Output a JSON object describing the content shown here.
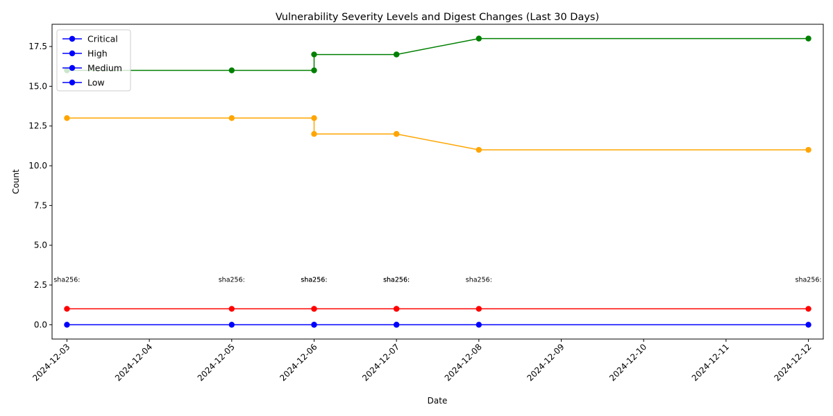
{
  "chart_data": {
    "type": "line",
    "title": "Vulnerability Severity Levels and Digest Changes (Last 30 Days)",
    "xlabel": "Date",
    "ylabel": "Count",
    "ylim": [
      -0.9,
      18.9
    ],
    "xlim": [
      "2024-12-02 19:40",
      "2024-12-12 04:20"
    ],
    "y_ticks": [
      0,
      2.5,
      5,
      7.5,
      10,
      12.5,
      15,
      17.5
    ],
    "y_tick_labels": [
      "0.0",
      "2.5",
      "5.0",
      "7.5",
      "10.0",
      "12.5",
      "15.0",
      "17.5"
    ],
    "x_ticks": [
      "2024-12-03",
      "2024-12-04",
      "2024-12-05",
      "2024-12-06",
      "2024-12-07",
      "2024-12-08",
      "2024-12-09",
      "2024-12-10",
      "2024-12-11",
      "2024-12-12"
    ],
    "grid": false,
    "legend": {
      "placement": "top-left",
      "entries": [
        "Critical",
        "High",
        "Medium",
        "Low"
      ],
      "marker_color": "#0000ff"
    },
    "x": [
      "2024-12-03",
      "2024-12-05",
      "2024-12-06",
      "2024-12-06",
      "2024-12-07",
      "2024-12-07",
      "2024-12-08",
      "2024-12-12"
    ],
    "series": [
      {
        "color": "#0000ff",
        "values": [
          0,
          0,
          0,
          0,
          0,
          0,
          0,
          0
        ]
      },
      {
        "color": "#ff0000",
        "values": [
          1,
          1,
          1,
          1,
          1,
          1,
          1,
          1
        ]
      },
      {
        "color": "#ffa500",
        "values": [
          13,
          13,
          13,
          12,
          12,
          12,
          11,
          11
        ]
      },
      {
        "color": "#008000",
        "values": [
          16,
          16,
          16,
          17,
          17,
          17,
          18,
          18
        ]
      }
    ],
    "annotations": [
      {
        "x": "2024-12-03",
        "y": 2.7,
        "text": "sha256:"
      },
      {
        "x": "2024-12-05",
        "y": 2.7,
        "text": "sha256:"
      },
      {
        "x": "2024-12-06",
        "y": 2.7,
        "text": "sha256:"
      },
      {
        "x": "2024-12-06",
        "y": 2.7,
        "text": "sha256:"
      },
      {
        "x": "2024-12-07",
        "y": 2.7,
        "text": "sha256:"
      },
      {
        "x": "2024-12-07",
        "y": 2.7,
        "text": "sha256:"
      },
      {
        "x": "2024-12-08",
        "y": 2.7,
        "text": "sha256:"
      },
      {
        "x": "2024-12-12",
        "y": 2.7,
        "text": "sha256:"
      }
    ]
  }
}
